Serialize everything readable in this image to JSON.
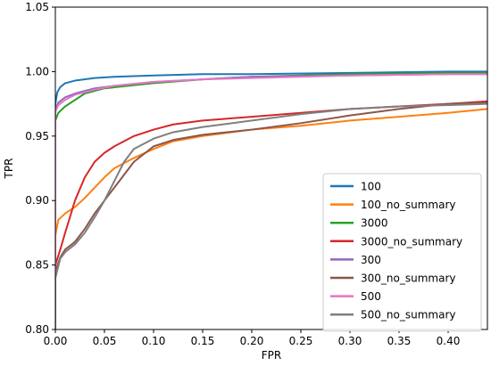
{
  "chart_data": {
    "type": "line",
    "xlabel": "FPR",
    "ylabel": "TPR",
    "xlim": [
      0.0,
      0.44
    ],
    "ylim": [
      0.8,
      1.05
    ],
    "xticks": [
      "0.00",
      "0.05",
      "0.10",
      "0.15",
      "0.20",
      "0.25",
      "0.30",
      "0.35",
      "0.40"
    ],
    "yticks": [
      "0.80",
      "0.85",
      "0.90",
      "0.95",
      "1.00",
      "1.05"
    ],
    "grid": false,
    "legend_position": "lower-right",
    "series": [
      {
        "name": "100",
        "color": "#1f77b4",
        "x": [
          0.0,
          0.0,
          0.002,
          0.005,
          0.01,
          0.02,
          0.04,
          0.06,
          0.1,
          0.15,
          0.2,
          0.3,
          0.4,
          0.44
        ],
        "y": [
          0.8,
          0.975,
          0.984,
          0.988,
          0.991,
          0.993,
          0.995,
          0.996,
          0.997,
          0.998,
          0.998,
          0.999,
          1.0,
          1.0
        ]
      },
      {
        "name": "100_no_summary",
        "color": "#ff7f0e",
        "x": [
          0.0,
          0.0,
          0.003,
          0.01,
          0.02,
          0.03,
          0.04,
          0.05,
          0.06,
          0.08,
          0.1,
          0.12,
          0.15,
          0.2,
          0.25,
          0.3,
          0.35,
          0.4,
          0.44
        ],
        "y": [
          0.8,
          0.873,
          0.885,
          0.89,
          0.895,
          0.902,
          0.91,
          0.918,
          0.925,
          0.933,
          0.94,
          0.946,
          0.95,
          0.955,
          0.958,
          0.962,
          0.965,
          0.968,
          0.971
        ]
      },
      {
        "name": "3000",
        "color": "#2ca02c",
        "x": [
          0.0,
          0.0,
          0.003,
          0.01,
          0.02,
          0.03,
          0.05,
          0.1,
          0.15,
          0.2,
          0.3,
          0.4,
          0.44
        ],
        "y": [
          0.8,
          0.962,
          0.968,
          0.973,
          0.978,
          0.983,
          0.987,
          0.991,
          0.994,
          0.996,
          0.998,
          0.999,
          0.999
        ]
      },
      {
        "name": "3000_no_summary",
        "color": "#d62728",
        "x": [
          0.0,
          0.0,
          0.005,
          0.01,
          0.02,
          0.03,
          0.04,
          0.05,
          0.06,
          0.08,
          0.1,
          0.12,
          0.15,
          0.2,
          0.25,
          0.3,
          0.35,
          0.4,
          0.44
        ],
        "y": [
          0.8,
          0.85,
          0.862,
          0.875,
          0.9,
          0.918,
          0.93,
          0.937,
          0.942,
          0.95,
          0.955,
          0.959,
          0.962,
          0.965,
          0.968,
          0.971,
          0.973,
          0.975,
          0.977
        ]
      },
      {
        "name": "300",
        "color": "#9467bd",
        "x": [
          0.0,
          0.0,
          0.003,
          0.01,
          0.02,
          0.04,
          0.06,
          0.1,
          0.15,
          0.2,
          0.3,
          0.4,
          0.44
        ],
        "y": [
          0.8,
          0.97,
          0.976,
          0.98,
          0.983,
          0.987,
          0.989,
          0.992,
          0.994,
          0.996,
          0.997,
          0.998,
          0.998
        ]
      },
      {
        "name": "300_no_summary",
        "color": "#8c564b",
        "x": [
          0.0,
          0.0,
          0.005,
          0.01,
          0.02,
          0.03,
          0.04,
          0.05,
          0.06,
          0.08,
          0.1,
          0.12,
          0.15,
          0.2,
          0.25,
          0.3,
          0.35,
          0.4,
          0.44
        ],
        "y": [
          0.8,
          0.845,
          0.856,
          0.862,
          0.868,
          0.878,
          0.89,
          0.9,
          0.91,
          0.93,
          0.942,
          0.947,
          0.951,
          0.955,
          0.96,
          0.966,
          0.971,
          0.975,
          0.976
        ]
      },
      {
        "name": "500",
        "color": "#e377c2",
        "x": [
          0.0,
          0.0,
          0.003,
          0.01,
          0.02,
          0.04,
          0.06,
          0.1,
          0.15,
          0.2,
          0.3,
          0.4,
          0.44
        ],
        "y": [
          0.8,
          0.969,
          0.974,
          0.978,
          0.982,
          0.986,
          0.989,
          0.992,
          0.994,
          0.995,
          0.997,
          0.998,
          0.998
        ]
      },
      {
        "name": "500_no_summary",
        "color": "#7f7f7f",
        "x": [
          0.0,
          0.0,
          0.005,
          0.01,
          0.02,
          0.03,
          0.04,
          0.05,
          0.06,
          0.07,
          0.08,
          0.1,
          0.12,
          0.15,
          0.2,
          0.25,
          0.3,
          0.35,
          0.4,
          0.44
        ],
        "y": [
          0.8,
          0.84,
          0.855,
          0.86,
          0.866,
          0.875,
          0.887,
          0.9,
          0.915,
          0.93,
          0.94,
          0.948,
          0.953,
          0.957,
          0.962,
          0.967,
          0.971,
          0.973,
          0.974,
          0.975
        ]
      }
    ]
  }
}
